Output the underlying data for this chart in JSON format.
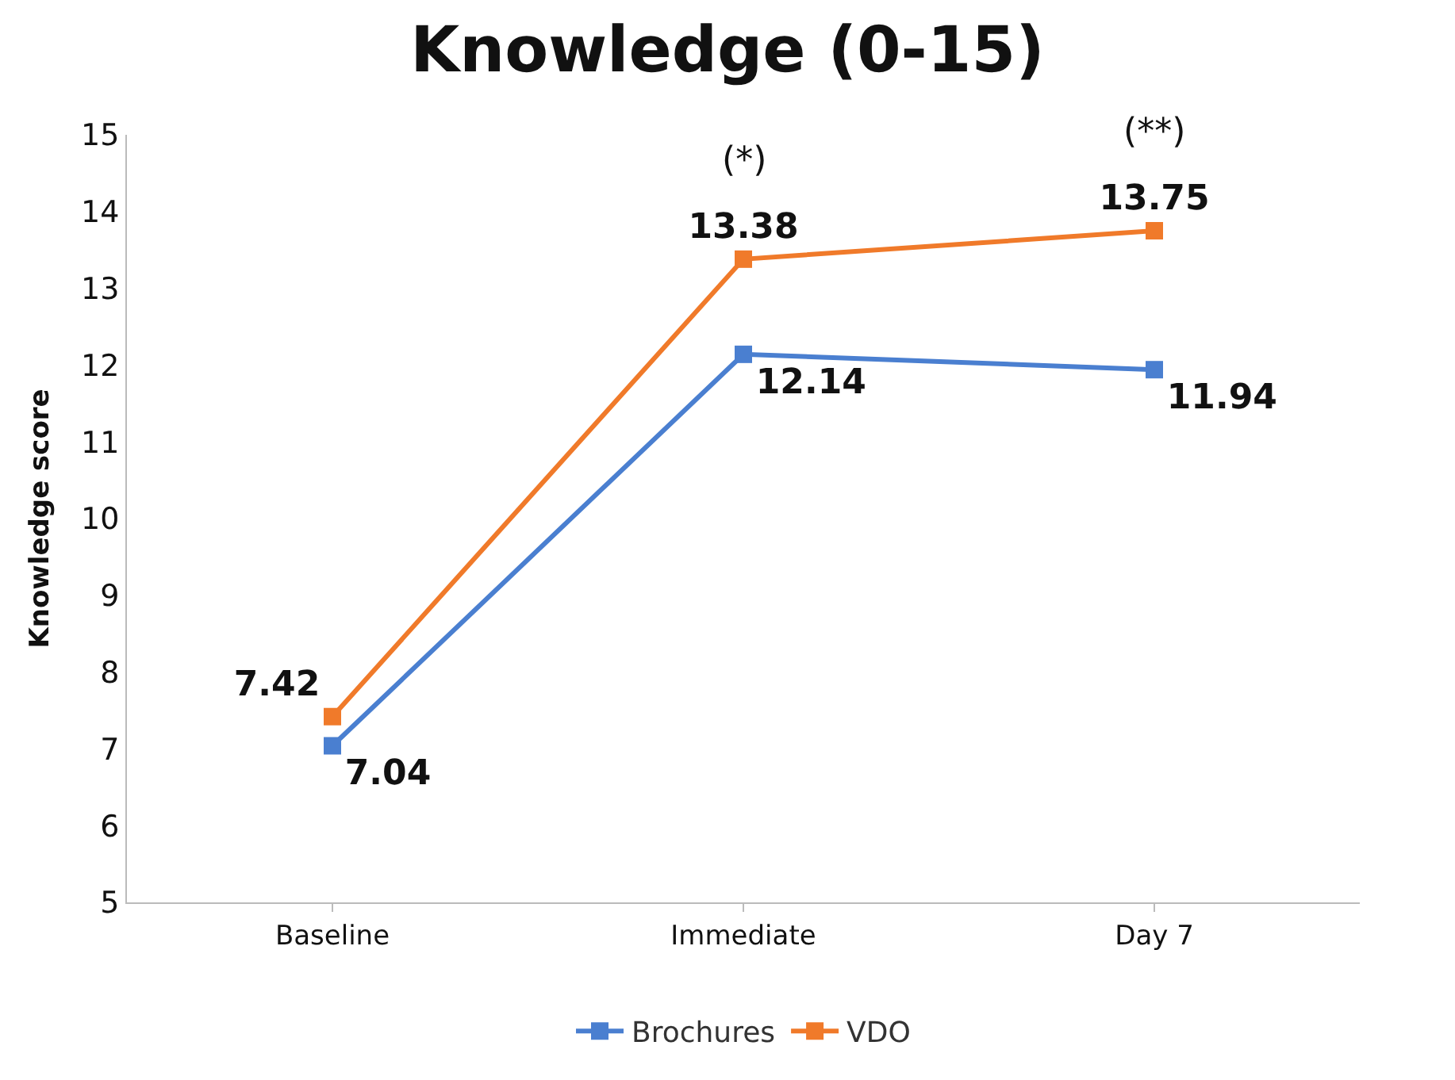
{
  "chart_data": {
    "type": "line",
    "title": "Knowledge (0-15)",
    "ylabel": "Knowledge score",
    "categories": [
      "Baseline",
      "Immediate",
      "Day 7"
    ],
    "series": [
      {
        "name": "Brochures",
        "color": "#4a7fd0",
        "values": [
          7.04,
          12.14,
          11.94
        ]
      },
      {
        "name": "VDO",
        "color": "#f07a2a",
        "values": [
          7.42,
          13.38,
          13.75
        ]
      }
    ],
    "ylim": [
      5,
      15
    ],
    "yticks": [
      5,
      6,
      7,
      8,
      9,
      10,
      11,
      12,
      13,
      14,
      15
    ],
    "annotations": [
      {
        "text": "(*)",
        "x": "Immediate",
        "y": 13.38
      },
      {
        "text": "(**)",
        "x": "Day 7",
        "y": 13.75
      }
    ],
    "data_labels": true,
    "legend": "bottom",
    "marker": "square",
    "line_style": "solid"
  }
}
